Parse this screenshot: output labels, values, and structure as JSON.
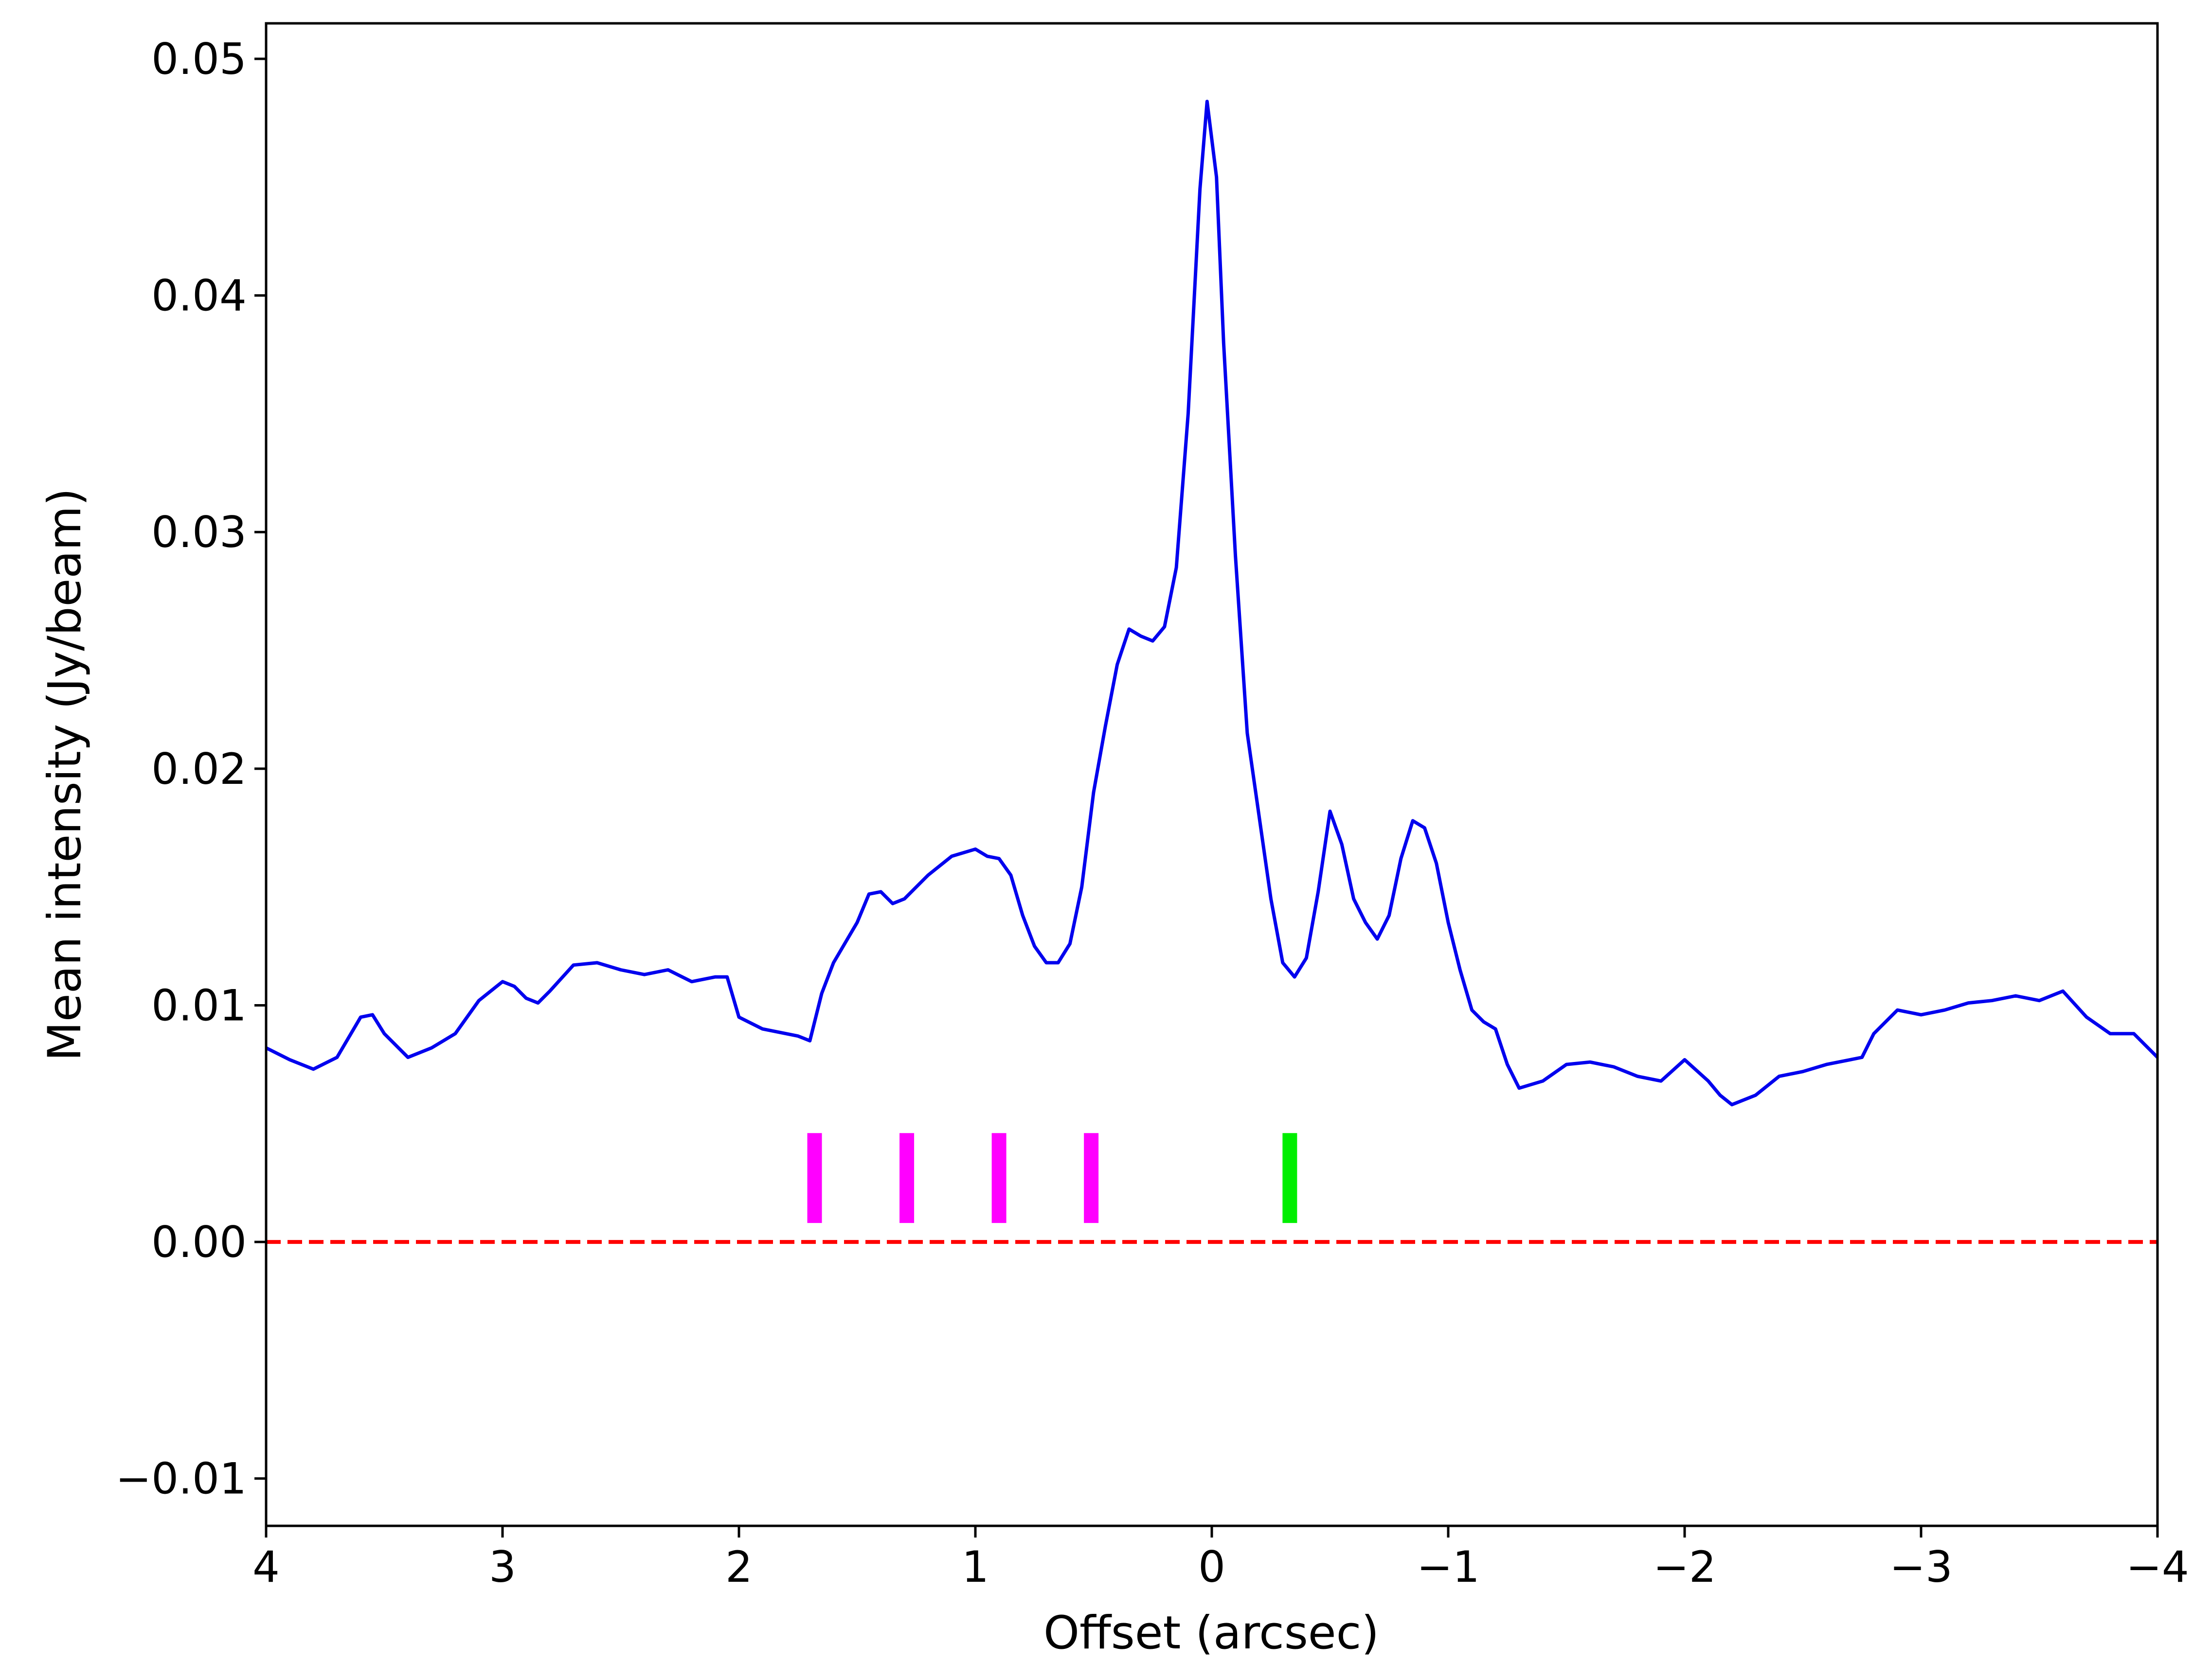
{
  "chart_data": {
    "type": "line",
    "title": "",
    "xlabel": "Offset (arcsec)",
    "ylabel": "Mean intensity (Jy/beam)",
    "xlim": [
      4,
      -4
    ],
    "ylim": [
      -0.012,
      0.0515
    ],
    "x_inverted": true,
    "grid": false,
    "x_ticks": [
      {
        "value": 4,
        "label": "4"
      },
      {
        "value": 3,
        "label": "3"
      },
      {
        "value": 2,
        "label": "2"
      },
      {
        "value": 1,
        "label": "1"
      },
      {
        "value": 0,
        "label": "0"
      },
      {
        "value": -1,
        "label": "−1"
      },
      {
        "value": -2,
        "label": "−2"
      },
      {
        "value": -3,
        "label": "−3"
      },
      {
        "value": -4,
        "label": "−4"
      }
    ],
    "y_ticks": [
      {
        "value": -0.01,
        "label": "−0.01"
      },
      {
        "value": 0.0,
        "label": "0.00"
      },
      {
        "value": 0.01,
        "label": "0.01"
      },
      {
        "value": 0.02,
        "label": "0.02"
      },
      {
        "value": 0.03,
        "label": "0.03"
      },
      {
        "value": 0.04,
        "label": "0.04"
      },
      {
        "value": 0.05,
        "label": "0.05"
      }
    ],
    "series": [
      {
        "color": "#0000ee",
        "x": [
          4.0,
          3.9,
          3.8,
          3.7,
          3.6,
          3.55,
          3.5,
          3.4,
          3.3,
          3.2,
          3.1,
          3.0,
          2.95,
          2.9,
          2.85,
          2.8,
          2.7,
          2.6,
          2.5,
          2.4,
          2.3,
          2.2,
          2.1,
          2.05,
          2.0,
          1.9,
          1.8,
          1.75,
          1.7,
          1.65,
          1.6,
          1.5,
          1.45,
          1.4,
          1.35,
          1.3,
          1.2,
          1.1,
          1.0,
          0.95,
          0.9,
          0.85,
          0.8,
          0.75,
          0.7,
          0.65,
          0.6,
          0.55,
          0.5,
          0.45,
          0.4,
          0.35,
          0.3,
          0.25,
          0.2,
          0.15,
          0.1,
          0.05,
          0.02,
          -0.02,
          -0.05,
          -0.1,
          -0.15,
          -0.2,
          -0.25,
          -0.3,
          -0.35,
          -0.4,
          -0.45,
          -0.5,
          -0.55,
          -0.6,
          -0.65,
          -0.7,
          -0.75,
          -0.8,
          -0.85,
          -0.9,
          -0.95,
          -1.0,
          -1.05,
          -1.1,
          -1.15,
          -1.2,
          -1.25,
          -1.3,
          -1.4,
          -1.5,
          -1.6,
          -1.7,
          -1.8,
          -1.9,
          -2.0,
          -2.1,
          -2.15,
          -2.2,
          -2.3,
          -2.4,
          -2.5,
          -2.6,
          -2.7,
          -2.75,
          -2.8,
          -2.9,
          -3.0,
          -3.1,
          -3.2,
          -3.3,
          -3.4,
          -3.5,
          -3.6,
          -3.7,
          -3.8,
          -3.9,
          -4.0
        ],
        "y": [
          0.0082,
          0.0077,
          0.0073,
          0.0078,
          0.0095,
          0.0096,
          0.0088,
          0.0078,
          0.0082,
          0.0088,
          0.0102,
          0.011,
          0.0108,
          0.0103,
          0.0101,
          0.0106,
          0.0117,
          0.0118,
          0.0115,
          0.0113,
          0.0115,
          0.011,
          0.0112,
          0.0112,
          0.0095,
          0.009,
          0.0088,
          0.0087,
          0.0085,
          0.0105,
          0.0118,
          0.0135,
          0.0147,
          0.0148,
          0.0143,
          0.0145,
          0.0155,
          0.0163,
          0.0166,
          0.0163,
          0.0162,
          0.0155,
          0.0138,
          0.0125,
          0.0118,
          0.0118,
          0.0126,
          0.015,
          0.019,
          0.0218,
          0.0244,
          0.0259,
          0.0256,
          0.0254,
          0.026,
          0.0285,
          0.035,
          0.0445,
          0.0482,
          0.045,
          0.038,
          0.029,
          0.0215,
          0.018,
          0.0145,
          0.0118,
          0.0112,
          0.012,
          0.0148,
          0.0182,
          0.0168,
          0.0145,
          0.0135,
          0.0128,
          0.0138,
          0.0162,
          0.0178,
          0.0175,
          0.016,
          0.0135,
          0.0115,
          0.0098,
          0.0093,
          0.009,
          0.0075,
          0.0065,
          0.0068,
          0.0075,
          0.0076,
          0.0074,
          0.007,
          0.0068,
          0.0077,
          0.0068,
          0.0062,
          0.0058,
          0.0062,
          0.007,
          0.0072,
          0.0075,
          0.0077,
          0.0078,
          0.0088,
          0.0098,
          0.0096,
          0.0098,
          0.0101,
          0.0102,
          0.0104,
          0.0102,
          0.0106,
          0.0095,
          0.0088,
          0.0088,
          0.0078
        ]
      }
    ],
    "reference_line": {
      "y": 0.0,
      "color": "#ff0000",
      "style": "dashed"
    },
    "markers": [
      {
        "x": 1.68,
        "y0": 0.0008,
        "y1": 0.0046,
        "color": "#ff00ff"
      },
      {
        "x": 1.29,
        "y0": 0.0008,
        "y1": 0.0046,
        "color": "#ff00ff"
      },
      {
        "x": 0.9,
        "y0": 0.0008,
        "y1": 0.0046,
        "color": "#ff00ff"
      },
      {
        "x": 0.51,
        "y0": 0.0008,
        "y1": 0.0046,
        "color": "#ff00ff"
      },
      {
        "x": -0.33,
        "y0": 0.0008,
        "y1": 0.0046,
        "color": "#00ee00"
      }
    ]
  }
}
